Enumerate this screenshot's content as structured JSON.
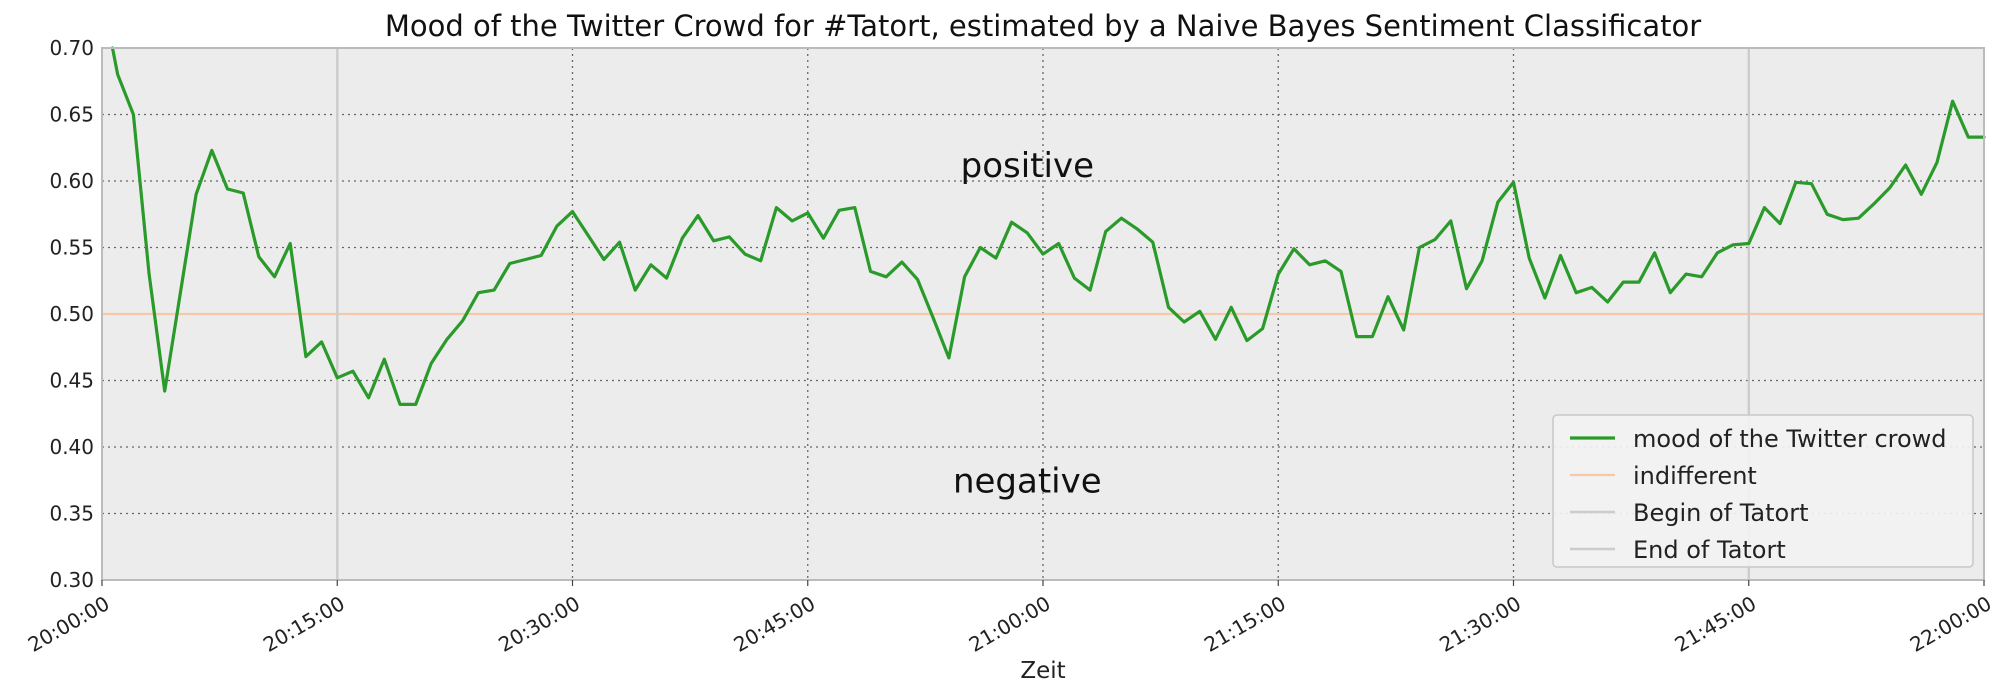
{
  "chart_data": {
    "type": "line",
    "title": "Mood of the Twitter Crowd for #Tatort, estimated by a Naive Bayes Sentiment Classificator",
    "xlabel": "Zeit",
    "ylabel": "",
    "x_range": [
      "20:00:00",
      "22:00:00"
    ],
    "ylim": [
      0.3,
      0.7
    ],
    "grid": true,
    "legend_position": "bottom-right",
    "x_ticks": [
      "20:00:00",
      "20:15:00",
      "20:30:00",
      "20:45:00",
      "21:00:00",
      "21:15:00",
      "21:30:00",
      "21:45:00",
      "22:00:00"
    ],
    "y_ticks": [
      "0.30",
      "0.35",
      "0.40",
      "0.45",
      "0.50",
      "0.55",
      "0.60",
      "0.65",
      "0.70"
    ],
    "annotations": [
      {
        "text": "positive",
        "x": "20:59:00",
        "y": 0.612
      },
      {
        "text": "negative",
        "x": "20:59:00",
        "y": 0.375
      }
    ],
    "series": [
      {
        "name": "mood of the Twitter crowd",
        "color": "#2a9a2a",
        "x": [
          "20:00:40",
          "20:01:00",
          "20:02:00",
          "20:03:00",
          "20:04:00",
          "20:06:00",
          "20:07:00",
          "20:08:00",
          "20:09:00",
          "20:10:00",
          "20:11:00",
          "20:12:00",
          "20:13:00",
          "20:14:00",
          "20:15:00",
          "20:16:00",
          "20:17:00",
          "20:18:00",
          "20:19:00",
          "20:20:00",
          "20:21:00",
          "20:22:00",
          "20:23:00",
          "20:24:00",
          "20:25:00",
          "20:26:00",
          "20:27:00",
          "20:28:00",
          "20:29:00",
          "20:30:00",
          "20:31:00",
          "20:32:00",
          "20:33:00",
          "20:34:00",
          "20:35:00",
          "20:36:00",
          "20:37:00",
          "20:38:00",
          "20:39:00",
          "20:40:00",
          "20:41:00",
          "20:42:00",
          "20:43:00",
          "20:44:00",
          "20:45:00",
          "20:46:00",
          "20:47:00",
          "20:48:00",
          "20:49:00",
          "20:50:00",
          "20:51:00",
          "20:52:00",
          "20:53:00",
          "20:54:00",
          "20:55:00",
          "20:56:00",
          "20:57:00",
          "20:58:00",
          "20:59:00",
          "21:00:00",
          "21:01:00",
          "21:02:00",
          "21:03:00",
          "21:04:00",
          "21:05:00",
          "21:06:00",
          "21:07:00",
          "21:08:00",
          "21:09:00",
          "21:10:00",
          "21:11:00",
          "21:12:00",
          "21:13:00",
          "21:14:00",
          "21:15:00",
          "21:16:00",
          "21:17:00",
          "21:18:00",
          "21:19:00",
          "21:20:00",
          "21:21:00",
          "21:22:00",
          "21:23:00",
          "21:24:00",
          "21:25:00",
          "21:26:00",
          "21:27:00",
          "21:28:00",
          "21:29:00",
          "21:30:00",
          "21:31:00",
          "21:32:00",
          "21:33:00",
          "21:34:00",
          "21:35:00",
          "21:36:00",
          "21:37:00",
          "21:38:00",
          "21:39:00",
          "21:40:00",
          "21:41:00",
          "21:42:00",
          "21:43:00",
          "21:44:00",
          "21:45:00",
          "21:46:00",
          "21:47:00",
          "21:48:00",
          "21:49:00",
          "21:50:00",
          "21:51:00",
          "21:52:00",
          "21:53:00",
          "21:54:00",
          "21:55:00",
          "21:56:00",
          "21:57:00",
          "21:58:00",
          "21:59:00",
          "22:00:00"
        ],
        "values": [
          0.7,
          0.68,
          0.65,
          0.53,
          0.442,
          0.59,
          0.623,
          0.594,
          0.591,
          0.543,
          0.528,
          0.553,
          0.468,
          0.479,
          0.452,
          0.457,
          0.437,
          0.466,
          0.432,
          0.432,
          0.463,
          0.481,
          0.495,
          0.516,
          0.518,
          0.538,
          0.541,
          0.544,
          0.566,
          0.577,
          0.559,
          0.541,
          0.554,
          0.518,
          0.537,
          0.527,
          0.557,
          0.574,
          0.555,
          0.558,
          0.545,
          0.54,
          0.58,
          0.57,
          0.576,
          0.557,
          0.578,
          0.58,
          0.532,
          0.528,
          0.539,
          0.526,
          0.497,
          0.467,
          0.528,
          0.55,
          0.542,
          0.569,
          0.561,
          0.545,
          0.553,
          0.527,
          0.518,
          0.562,
          0.572,
          0.564,
          0.554,
          0.505,
          0.494,
          0.502,
          0.481,
          0.505,
          0.48,
          0.489,
          0.53,
          0.549,
          0.537,
          0.54,
          0.532,
          0.483,
          0.483,
          0.513,
          0.488,
          0.55,
          0.556,
          0.57,
          0.519,
          0.54,
          0.584,
          0.599,
          0.542,
          0.512,
          0.544,
          0.516,
          0.52,
          0.509,
          0.524,
          0.524,
          0.546,
          0.516,
          0.53,
          0.528,
          0.546,
          0.552,
          0.553,
          0.58,
          0.568,
          0.599,
          0.598,
          0.575,
          0.571,
          0.572,
          0.583,
          0.595,
          0.612,
          0.59,
          0.614,
          0.66,
          0.633,
          0.633
        ]
      },
      {
        "name": "indifferent",
        "color": "#f5c9a8",
        "x": [
          "20:00:00",
          "22:00:00"
        ],
        "values": [
          0.5,
          0.5
        ]
      },
      {
        "name": "Begin of Tatort",
        "color": "#cccccc",
        "x": [
          "20:15:00",
          "20:15:00"
        ],
        "values": [
          0.3,
          0.7
        ]
      },
      {
        "name": "End of Tatort",
        "color": "#cccccc",
        "x": [
          "21:45:00",
          "21:45:00"
        ],
        "values": [
          0.3,
          0.7
        ]
      }
    ]
  },
  "colors": {
    "plot_background": "#ececec",
    "grid": "#666666",
    "axes_edge": "#bbbbbb"
  }
}
